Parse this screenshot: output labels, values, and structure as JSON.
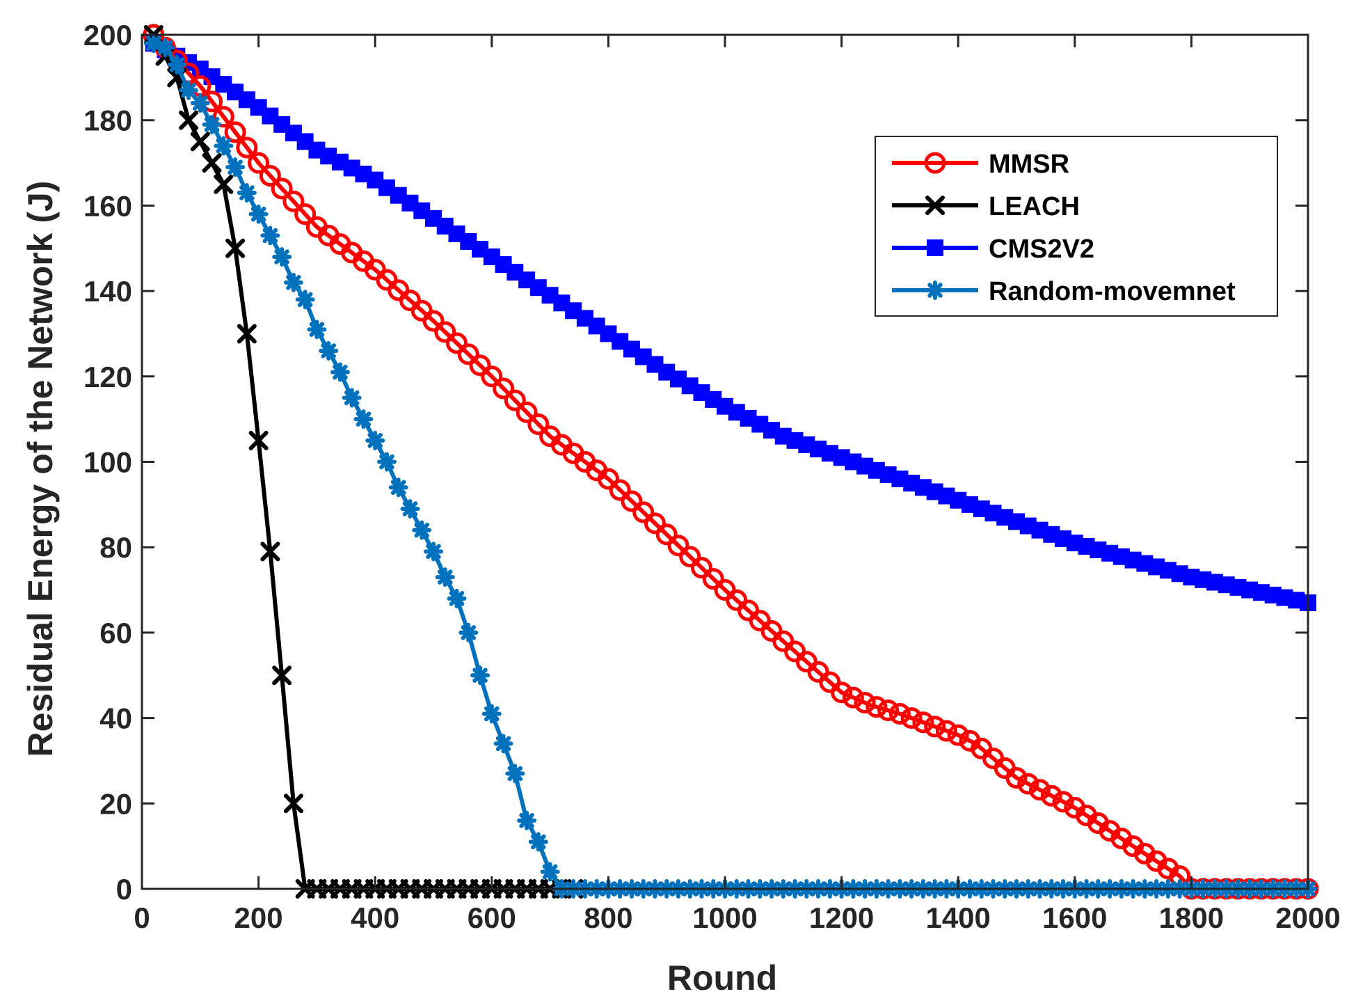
{
  "chart_data": {
    "type": "line",
    "title": "",
    "xlabel": "Round",
    "ylabel": "Residual Energy of the Network (J)",
    "xlim": [
      0,
      2000
    ],
    "ylim": [
      0,
      200
    ],
    "xticks": [
      0,
      200,
      400,
      600,
      800,
      1000,
      1200,
      1400,
      1600,
      1800,
      2000
    ],
    "yticks": [
      0,
      20,
      40,
      60,
      80,
      100,
      120,
      140,
      160,
      180,
      200
    ],
    "grid": false,
    "legend_position": "top-right",
    "series": [
      {
        "name": "MMSR",
        "color": "#ff0000",
        "marker": "circle",
        "marker_step": 20,
        "points": [
          [
            20,
            200
          ],
          [
            100,
            188
          ],
          [
            200,
            170
          ],
          [
            300,
            155
          ],
          [
            400,
            145
          ],
          [
            500,
            133
          ],
          [
            600,
            120
          ],
          [
            700,
            106
          ],
          [
            800,
            96
          ],
          [
            900,
            83
          ],
          [
            1000,
            70
          ],
          [
            1100,
            58
          ],
          [
            1200,
            46
          ],
          [
            1250,
            43
          ],
          [
            1300,
            41
          ],
          [
            1400,
            36
          ],
          [
            1430,
            34
          ],
          [
            1500,
            26
          ],
          [
            1600,
            19
          ],
          [
            1700,
            10
          ],
          [
            1780,
            3
          ],
          [
            1800,
            0
          ],
          [
            2000,
            0
          ]
        ]
      },
      {
        "name": "LEACH",
        "color": "#000000",
        "marker": "x",
        "marker_step": 20,
        "points": [
          [
            20,
            200
          ],
          [
            40,
            195
          ],
          [
            60,
            190
          ],
          [
            80,
            180
          ],
          [
            100,
            175
          ],
          [
            120,
            170
          ],
          [
            140,
            165
          ],
          [
            160,
            150
          ],
          [
            180,
            130
          ],
          [
            200,
            105
          ],
          [
            220,
            79
          ],
          [
            240,
            50
          ],
          [
            260,
            20
          ],
          [
            280,
            0
          ],
          [
            740,
            0
          ]
        ]
      },
      {
        "name": "CMS2V2",
        "color": "#0000ff",
        "marker": "square",
        "marker_step": 20,
        "points": [
          [
            20,
            198
          ],
          [
            100,
            192
          ],
          [
            200,
            183
          ],
          [
            300,
            173
          ],
          [
            400,
            166
          ],
          [
            500,
            157
          ],
          [
            600,
            148
          ],
          [
            700,
            139
          ],
          [
            800,
            130
          ],
          [
            900,
            121
          ],
          [
            1000,
            113
          ],
          [
            1100,
            106
          ],
          [
            1200,
            101
          ],
          [
            1300,
            96
          ],
          [
            1400,
            91
          ],
          [
            1500,
            86
          ],
          [
            1600,
            81
          ],
          [
            1700,
            77
          ],
          [
            1800,
            73
          ],
          [
            1900,
            70
          ],
          [
            2000,
            67
          ]
        ]
      },
      {
        "name": "Random-movemnet",
        "color": "#0072bd",
        "marker": "asterisk",
        "marker_step": 20,
        "points": [
          [
            20,
            198
          ],
          [
            40,
            197
          ],
          [
            60,
            193
          ],
          [
            80,
            187
          ],
          [
            100,
            184
          ],
          [
            120,
            179
          ],
          [
            140,
            174
          ],
          [
            160,
            169
          ],
          [
            180,
            163
          ],
          [
            200,
            158
          ],
          [
            220,
            153
          ],
          [
            240,
            148
          ],
          [
            260,
            142
          ],
          [
            280,
            138
          ],
          [
            300,
            131
          ],
          [
            320,
            126
          ],
          [
            340,
            121
          ],
          [
            360,
            115
          ],
          [
            380,
            110
          ],
          [
            400,
            105
          ],
          [
            420,
            100
          ],
          [
            440,
            94
          ],
          [
            460,
            89
          ],
          [
            480,
            84
          ],
          [
            500,
            79
          ],
          [
            520,
            73
          ],
          [
            540,
            68
          ],
          [
            560,
            60
          ],
          [
            580,
            50
          ],
          [
            600,
            41
          ],
          [
            620,
            34
          ],
          [
            640,
            27
          ],
          [
            660,
            16
          ],
          [
            680,
            11
          ],
          [
            700,
            4
          ],
          [
            720,
            0
          ],
          [
            2000,
            0
          ]
        ]
      }
    ]
  }
}
